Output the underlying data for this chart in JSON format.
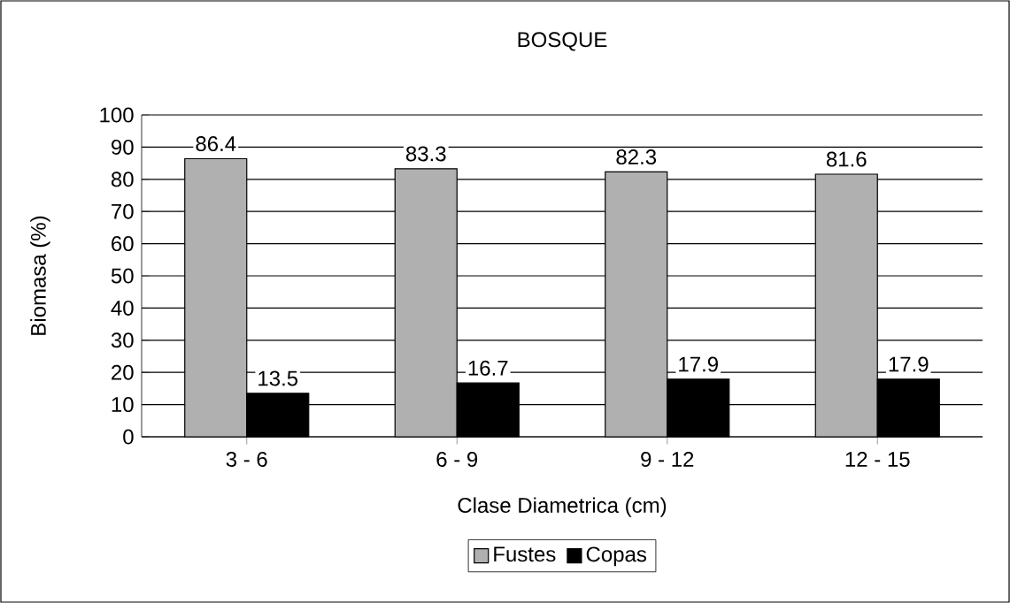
{
  "chart_data": {
    "type": "bar",
    "title": "BOSQUE",
    "xlabel": "Clase Diametrica (cm)",
    "ylabel": "Biomasa (%)",
    "categories": [
      "3 - 6",
      "6 - 9",
      "9 - 12",
      "12 - 15"
    ],
    "series": [
      {
        "name": "Fustes",
        "color": "#b0b0b0",
        "values": [
          86.4,
          83.3,
          82.3,
          81.6
        ]
      },
      {
        "name": "Copas",
        "color": "#000000",
        "values": [
          13.5,
          16.7,
          17.9,
          17.9
        ]
      }
    ],
    "ylim": [
      0,
      100
    ],
    "yticks": [
      0,
      10,
      20,
      30,
      40,
      50,
      60,
      70,
      80,
      90,
      100
    ],
    "grid": "y",
    "legend": "bottom",
    "data_labels": true
  }
}
